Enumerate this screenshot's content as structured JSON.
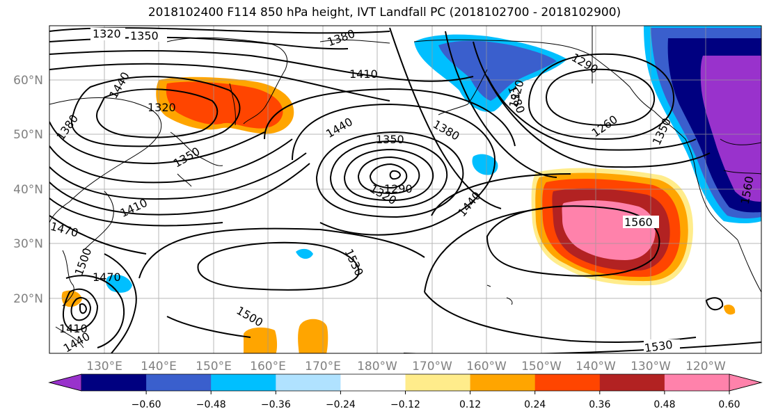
{
  "title": "2018102400 F114 850 hPa height, IVT Landfall PC (2018102700 - 2018102900)",
  "lon_labels": [
    "130°E",
    "140°E",
    "150°E",
    "160°E",
    "170°E",
    "180°W",
    "170°W",
    "160°W",
    "150°W",
    "140°W",
    "130°W",
    "120°W"
  ],
  "lat_labels": [
    "60°N",
    "50°N",
    "40°N",
    "30°N",
    "20°N"
  ],
  "contour_labels": [
    "1320",
    "1350",
    "1380",
    "1410",
    "1440",
    "1380",
    "1320",
    "1350",
    "1410",
    "1470",
    "1500",
    "1470",
    "1410",
    "1440",
    "1380",
    "1440",
    "1350",
    "1380",
    "1320",
    "1290",
    "1440",
    "1530",
    "1500",
    "1290",
    "1260",
    "1350",
    "1320",
    "1560",
    "1560",
    "1530"
  ],
  "colorbar": {
    "ticks": [
      "−0.60",
      "−0.48",
      "−0.36",
      "−0.24",
      "−0.12",
      "0.12",
      "0.24",
      "0.36",
      "0.48",
      "0.60"
    ],
    "colors": [
      "#9932cc",
      "#000080",
      "#3a5fcd",
      "#00bfff",
      "#b0e2ff",
      "#ffffff",
      "#ffec8b",
      "#ffa500",
      "#ff4500",
      "#b22222",
      "#ff82ab",
      "#ff82ab"
    ]
  }
}
